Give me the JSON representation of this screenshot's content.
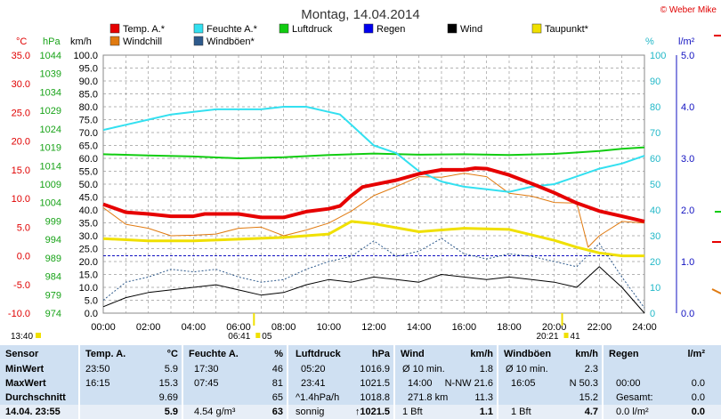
{
  "title": "Montag, 14.04.2014",
  "copyright": "© Weber Mike",
  "colors": {
    "temp": "#e60000",
    "windchill": "#e07a10",
    "feuchte": "#33e0f0",
    "windboeen": "#2e5a8c",
    "luftdruck": "#11cc11",
    "regen": "#0000ee",
    "wind": "#000000",
    "taupunkt": "#f0e000"
  },
  "legend": [
    {
      "label": "Temp. A.*",
      "color": "#e60000"
    },
    {
      "label": "Windchill",
      "color": "#e07a10"
    },
    {
      "label": "Feuchte A.*",
      "color": "#33e0f0"
    },
    {
      "label": "Windböen*",
      "color": "#2e5a8c"
    },
    {
      "label": "Luftdruck",
      "color": "#11cc11"
    },
    {
      "label": "Regen",
      "color": "#0000ee"
    },
    {
      "label": "Wind",
      "color": "#000000"
    },
    {
      "label": "Taupunkt*",
      "color": "#f0e000"
    }
  ],
  "axes": {
    "temp_unit": "°C",
    "hpa_unit": "hPa",
    "kmh_unit": "km/h",
    "pct_unit": "%",
    "rain_unit": "l/m²",
    "temp_ticks": [
      "35.0",
      "30.0",
      "25.0",
      "20.0",
      "15.0",
      "10.0",
      "5.0",
      "0.0",
      "-5.0",
      "-10.0"
    ],
    "hpa_ticks": [
      "1044",
      "1039",
      "1034",
      "1029",
      "1024",
      "1019",
      "1014",
      "1009",
      "1004",
      "999",
      "994",
      "989",
      "984",
      "979",
      "974"
    ],
    "kmh_ticks": [
      "100.0",
      "95.0",
      "90.0",
      "85.0",
      "80.0",
      "75.0",
      "70.0",
      "65.0",
      "60.0",
      "55.0",
      "50.0",
      "45.0",
      "40.0",
      "35.0",
      "30.0",
      "25.0",
      "20.0",
      "15.0",
      "10.0",
      "5.0",
      "0.0"
    ],
    "pct_ticks": [
      "100",
      "90",
      "80",
      "70",
      "60",
      "50",
      "40",
      "30",
      "20",
      "10",
      "0"
    ],
    "rain_ticks": [
      "5.0",
      "4.0",
      "3.0",
      "2.0",
      "1.0",
      "0.0"
    ],
    "x_ticks": [
      "00:00",
      "02:00",
      "04:00",
      "06:00",
      "08:00",
      "10:00",
      "12:00",
      "14:00",
      "16:00",
      "18:00",
      "20:00",
      "22:00",
      "24:00"
    ],
    "sunrise": "06:41",
    "sunrise_extra": "05",
    "sunset": "20:21",
    "sunset_extra": "41",
    "left_time": "13:40"
  },
  "chart_data": {
    "type": "line",
    "x_unit": "hours",
    "x_range": [
      0,
      24
    ],
    "series": [
      {
        "name": "Temp. A.*",
        "axis": "°C",
        "x": [
          0,
          1,
          2,
          3,
          4,
          4.5,
          5,
          6,
          7,
          8,
          9,
          10,
          10.5,
          11,
          11.5,
          12,
          13,
          14,
          15,
          16,
          16.5,
          17,
          18,
          19,
          20,
          21,
          22,
          23,
          24
        ],
        "values": [
          9.0,
          7.6,
          7.3,
          6.9,
          6.9,
          7.3,
          7.3,
          7.3,
          6.7,
          6.7,
          7.7,
          8.2,
          8.7,
          10.5,
          12.0,
          12.4,
          13.2,
          14.3,
          15.0,
          15.0,
          15.3,
          15.2,
          14.1,
          12.6,
          11.0,
          9.2,
          7.8,
          6.9,
          6.0
        ]
      },
      {
        "name": "Windchill",
        "axis": "°C",
        "x": [
          0,
          1,
          2,
          3,
          4,
          5,
          6,
          7,
          8,
          9,
          10,
          11,
          12,
          13,
          14,
          15,
          16,
          17,
          18,
          19,
          20,
          21,
          21.5,
          22,
          23,
          24
        ],
        "values": [
          8.4,
          5.5,
          4.8,
          3.5,
          3.6,
          3.8,
          4.8,
          5.0,
          3.5,
          4.5,
          5.7,
          7.8,
          10.5,
          12.1,
          13.8,
          13.7,
          14.4,
          13.8,
          10.9,
          10.4,
          9.3,
          9.2,
          1.5,
          3.5,
          6.0,
          5.7
        ]
      },
      {
        "name": "Feuchte A.*",
        "axis": "%",
        "x": [
          0,
          1,
          2,
          3,
          4,
          5,
          6,
          7,
          8,
          9,
          10,
          10.5,
          11,
          11.5,
          12,
          13,
          14,
          15,
          16,
          17,
          18,
          19,
          20,
          21,
          22,
          23,
          24
        ],
        "values": [
          71,
          73,
          75,
          77,
          78,
          79,
          79,
          79,
          80,
          80,
          78,
          77,
          73,
          69,
          65,
          62,
          55,
          51,
          49,
          48,
          47,
          49,
          50,
          53,
          56,
          58,
          61
        ]
      },
      {
        "name": "Luftdruck",
        "axis": "hPa",
        "x": [
          0,
          2,
          4,
          6,
          8,
          10,
          12,
          14,
          16,
          18,
          20,
          22,
          23,
          24
        ],
        "values": [
          1017.1,
          1016.8,
          1016.5,
          1016.0,
          1016.3,
          1016.9,
          1017.3,
          1017.0,
          1017.1,
          1016.9,
          1017.2,
          1018.0,
          1018.6,
          1019.0
        ]
      },
      {
        "name": "Taupunkt*",
        "axis": "°C",
        "x": [
          0,
          2,
          4,
          6,
          8,
          10,
          11,
          12,
          14,
          16,
          18,
          20,
          21,
          22,
          23,
          24
        ],
        "values": [
          3.0,
          2.6,
          2.6,
          2.9,
          3.2,
          3.8,
          6.0,
          5.6,
          4.2,
          4.8,
          4.6,
          2.7,
          1.5,
          0.5,
          0.0,
          0.0
        ]
      },
      {
        "name": "Wind",
        "axis": "km/h",
        "x": [
          0,
          1,
          2,
          3,
          4,
          5,
          6,
          7,
          8,
          9,
          10,
          11,
          12,
          13,
          14,
          15,
          16,
          17,
          18,
          19,
          20,
          21,
          22,
          23,
          24
        ],
        "values": [
          2.5,
          6,
          8,
          9,
          10,
          11,
          9,
          7,
          8,
          11,
          13,
          12,
          14,
          13,
          12,
          15,
          14,
          13,
          14,
          13,
          12,
          10,
          18,
          10,
          0
        ]
      },
      {
        "name": "Windböen*",
        "axis": "km/h",
        "x": [
          0,
          1,
          2,
          3,
          4,
          5,
          6,
          7,
          8,
          9,
          10,
          11,
          12,
          13,
          14,
          15,
          16,
          17,
          18,
          19,
          20,
          21,
          22,
          23,
          24
        ],
        "values": [
          5,
          12,
          14,
          17,
          16,
          17,
          14,
          12,
          13,
          17,
          20,
          22,
          28,
          22,
          24,
          29,
          23,
          21,
          23,
          22,
          20,
          18,
          27,
          14,
          2
        ]
      }
    ]
  },
  "stats": {
    "sensor": {
      "header": "Sensor",
      "rows": [
        "MinWert",
        "MaxWert",
        "Durchschnitt",
        "14.04. 23:55"
      ]
    },
    "temp": {
      "header": "Temp. A.",
      "unit": "°C",
      "rows": [
        [
          "23:50",
          "5.9"
        ],
        [
          "16:15",
          "15.3"
        ],
        [
          "",
          "9.69"
        ],
        [
          "",
          "5.9"
        ]
      ]
    },
    "feuchte": {
      "header": "Feuchte A.",
      "unit": "%",
      "rows": [
        [
          "17:30",
          "46"
        ],
        [
          "07:45",
          "81"
        ],
        [
          "",
          "65"
        ],
        [
          "4.54 g/m³",
          "63"
        ]
      ]
    },
    "luftdruck": {
      "header": "Luftdruck",
      "unit": "hPa",
      "rows": [
        [
          "05:20",
          "1016.9"
        ],
        [
          "23:41",
          "1021.5"
        ],
        [
          "^1.4hPa/h",
          "1018.8"
        ],
        [
          "sonnig",
          "↑1021.5"
        ]
      ]
    },
    "wind": {
      "header": "Wind",
      "unit": "km/h",
      "rows": [
        [
          "Ø 10 min.",
          "",
          "1.8"
        ],
        [
          "14:00",
          "N-NW 21.6",
          ""
        ],
        [
          "271.8 km",
          "",
          "11.3"
        ],
        [
          "1 Bft",
          "",
          "1.1"
        ]
      ]
    },
    "boeen": {
      "header": "Windböen",
      "unit": "km/h",
      "rows": [
        [
          "Ø 10 min.",
          "",
          "2.3"
        ],
        [
          "16:05",
          "N 50.3",
          ""
        ],
        [
          "",
          "",
          "15.2"
        ],
        [
          "1 Bft",
          "",
          "4.7"
        ]
      ]
    },
    "regen": {
      "header": "Regen",
      "unit": "l/m²",
      "rows": [
        [
          "",
          ""
        ],
        [
          "00:00",
          "0.0"
        ],
        [
          "Gesamt:",
          "0.0"
        ],
        [
          "0.0 l/m²",
          "0.0"
        ]
      ]
    }
  }
}
